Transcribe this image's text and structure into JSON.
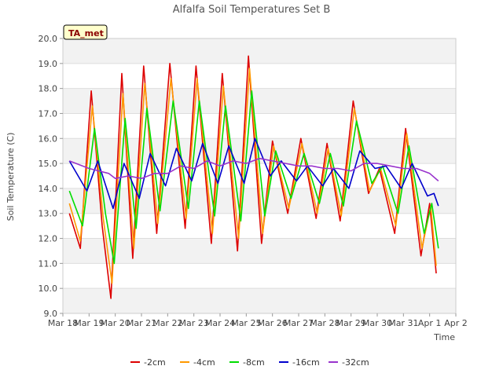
{
  "chart_data": {
    "type": "line",
    "title": "Alfalfa Soil Temperatures Set B",
    "xlabel": "Time",
    "ylabel": "Soil Temperature (C)",
    "ylim": [
      9.0,
      20.0
    ],
    "y_ticks": [
      "9.0",
      "10.0",
      "11.0",
      "12.0",
      "13.0",
      "14.0",
      "15.0",
      "16.0",
      "17.0",
      "18.0",
      "19.0",
      "20.0"
    ],
    "x_ticks": [
      "Mar 18",
      "Mar 19",
      "Mar 20",
      "Mar 21",
      "Mar 22",
      "Mar 23",
      "Mar 24",
      "Mar 25",
      "Mar 26",
      "Mar 27",
      "Mar 28",
      "Mar 29",
      "Mar 30",
      "Mar 31",
      "Apr 1",
      "Apr 2"
    ],
    "x_start": "2023-03-18",
    "x_end": "2023-04-02",
    "grid": "horizontal bands",
    "legend_position": "bottom",
    "badge": "TA_met",
    "series": [
      {
        "name": "-2cm",
        "color": "#dd0000",
        "values": [
          [
            "2023-03-18T06:00",
            13.0
          ],
          [
            "2023-03-18T16:00",
            11.6
          ],
          [
            "2023-03-19T02:00",
            17.9
          ],
          [
            "2023-03-19T12:00",
            12.5
          ],
          [
            "2023-03-19T20:00",
            9.6
          ],
          [
            "2023-03-20T06:00",
            18.6
          ],
          [
            "2023-03-20T16:00",
            11.2
          ],
          [
            "2023-03-21T02:00",
            18.9
          ],
          [
            "2023-03-21T14:00",
            12.2
          ],
          [
            "2023-03-22T02:00",
            19.0
          ],
          [
            "2023-03-22T16:00",
            12.4
          ],
          [
            "2023-03-23T02:00",
            18.9
          ],
          [
            "2023-03-23T16:00",
            11.8
          ],
          [
            "2023-03-24T02:00",
            18.6
          ],
          [
            "2023-03-24T16:00",
            11.5
          ],
          [
            "2023-03-25T02:00",
            19.3
          ],
          [
            "2023-03-25T14:00",
            11.8
          ],
          [
            "2023-03-26T00:00",
            15.9
          ],
          [
            "2023-03-26T14:00",
            13.0
          ],
          [
            "2023-03-27T02:00",
            16.0
          ],
          [
            "2023-03-27T16:00",
            12.8
          ],
          [
            "2023-03-28T02:00",
            15.8
          ],
          [
            "2023-03-28T14:00",
            12.7
          ],
          [
            "2023-03-29T02:00",
            17.5
          ],
          [
            "2023-03-29T16:00",
            13.8
          ],
          [
            "2023-03-30T02:00",
            14.8
          ],
          [
            "2023-03-30T16:00",
            12.2
          ],
          [
            "2023-03-31T02:00",
            16.4
          ],
          [
            "2023-03-31T16:00",
            11.3
          ],
          [
            "2023-04-01T00:00",
            13.4
          ],
          [
            "2023-04-01T06:00",
            10.6
          ]
        ]
      },
      {
        "name": "-4cm",
        "color": "#ff9900",
        "values": [
          [
            "2023-03-18T06:00",
            13.4
          ],
          [
            "2023-03-18T16:00",
            11.9
          ],
          [
            "2023-03-19T03:00",
            17.3
          ],
          [
            "2023-03-19T13:00",
            12.8
          ],
          [
            "2023-03-19T21:00",
            10.2
          ],
          [
            "2023-03-20T07:00",
            17.8
          ],
          [
            "2023-03-20T17:00",
            11.6
          ],
          [
            "2023-03-21T03:00",
            18.2
          ],
          [
            "2023-03-21T15:00",
            12.6
          ],
          [
            "2023-03-22T03:00",
            18.4
          ],
          [
            "2023-03-22T17:00",
            12.8
          ],
          [
            "2023-03-23T03:00",
            18.4
          ],
          [
            "2023-03-23T17:00",
            12.2
          ],
          [
            "2023-03-24T03:00",
            18.1
          ],
          [
            "2023-03-24T17:00",
            12.0
          ],
          [
            "2023-03-25T03:00",
            18.8
          ],
          [
            "2023-03-25T15:00",
            12.2
          ],
          [
            "2023-03-26T01:00",
            15.7
          ],
          [
            "2023-03-26T15:00",
            13.2
          ],
          [
            "2023-03-27T03:00",
            15.8
          ],
          [
            "2023-03-27T17:00",
            13.0
          ],
          [
            "2023-03-28T03:00",
            15.6
          ],
          [
            "2023-03-28T15:00",
            12.9
          ],
          [
            "2023-03-29T03:00",
            17.2
          ],
          [
            "2023-03-29T17:00",
            13.9
          ],
          [
            "2023-03-30T03:00",
            14.8
          ],
          [
            "2023-03-30T17:00",
            12.5
          ],
          [
            "2023-03-31T03:00",
            16.2
          ],
          [
            "2023-03-31T17:00",
            11.6
          ],
          [
            "2023-04-01T01:00",
            13.3
          ],
          [
            "2023-04-01T06:00",
            10.9
          ]
        ]
      },
      {
        "name": "-8cm",
        "color": "#00dd00",
        "values": [
          [
            "2023-03-18T06:00",
            13.9
          ],
          [
            "2023-03-18T18:00",
            12.5
          ],
          [
            "2023-03-19T05:00",
            16.4
          ],
          [
            "2023-03-19T15:00",
            13.0
          ],
          [
            "2023-03-19T23:00",
            11.0
          ],
          [
            "2023-03-20T09:00",
            16.8
          ],
          [
            "2023-03-20T19:00",
            12.4
          ],
          [
            "2023-03-21T05:00",
            17.2
          ],
          [
            "2023-03-21T17:00",
            13.1
          ],
          [
            "2023-03-22T05:00",
            17.5
          ],
          [
            "2023-03-22T19:00",
            13.2
          ],
          [
            "2023-03-23T05:00",
            17.5
          ],
          [
            "2023-03-23T19:00",
            12.9
          ],
          [
            "2023-03-24T05:00",
            17.3
          ],
          [
            "2023-03-24T19:00",
            12.7
          ],
          [
            "2023-03-25T05:00",
            17.9
          ],
          [
            "2023-03-25T17:00",
            12.9
          ],
          [
            "2023-03-26T03:00",
            15.5
          ],
          [
            "2023-03-26T17:00",
            13.6
          ],
          [
            "2023-03-27T05:00",
            15.4
          ],
          [
            "2023-03-27T19:00",
            13.4
          ],
          [
            "2023-03-28T05:00",
            15.4
          ],
          [
            "2023-03-28T17:00",
            13.3
          ],
          [
            "2023-03-29T05:00",
            16.7
          ],
          [
            "2023-03-29T19:00",
            14.2
          ],
          [
            "2023-03-30T05:00",
            14.9
          ],
          [
            "2023-03-30T19:00",
            13.0
          ],
          [
            "2023-03-31T05:00",
            15.7
          ],
          [
            "2023-03-31T19:00",
            12.2
          ],
          [
            "2023-04-01T02:00",
            13.4
          ],
          [
            "2023-04-01T08:00",
            11.6
          ]
        ]
      },
      {
        "name": "-16cm",
        "color": "#0000cc",
        "values": [
          [
            "2023-03-18T06:00",
            15.1
          ],
          [
            "2023-03-18T22:00",
            13.9
          ],
          [
            "2023-03-19T08:00",
            15.1
          ],
          [
            "2023-03-19T22:00",
            13.2
          ],
          [
            "2023-03-20T08:00",
            15.0
          ],
          [
            "2023-03-20T22:00",
            13.6
          ],
          [
            "2023-03-21T08:00",
            15.4
          ],
          [
            "2023-03-21T22:00",
            14.1
          ],
          [
            "2023-03-22T08:00",
            15.6
          ],
          [
            "2023-03-22T22:00",
            14.3
          ],
          [
            "2023-03-23T08:00",
            15.8
          ],
          [
            "2023-03-23T22:00",
            14.2
          ],
          [
            "2023-03-24T08:00",
            15.7
          ],
          [
            "2023-03-24T22:00",
            14.2
          ],
          [
            "2023-03-25T08:00",
            16.0
          ],
          [
            "2023-03-25T22:00",
            14.5
          ],
          [
            "2023-03-26T08:00",
            15.1
          ],
          [
            "2023-03-26T22:00",
            14.3
          ],
          [
            "2023-03-27T08:00",
            14.9
          ],
          [
            "2023-03-27T22:00",
            14.1
          ],
          [
            "2023-03-28T08:00",
            14.8
          ],
          [
            "2023-03-28T22:00",
            14.0
          ],
          [
            "2023-03-29T08:00",
            15.5
          ],
          [
            "2023-03-29T22:00",
            14.8
          ],
          [
            "2023-03-30T08:00",
            14.9
          ],
          [
            "2023-03-30T22:00",
            14.0
          ],
          [
            "2023-03-31T08:00",
            15.0
          ],
          [
            "2023-03-31T22:00",
            13.7
          ],
          [
            "2023-04-01T04:00",
            13.8
          ],
          [
            "2023-04-01T08:00",
            13.3
          ]
        ]
      },
      {
        "name": "-32cm",
        "color": "#9933cc",
        "values": [
          [
            "2023-03-18T06:00",
            15.1
          ],
          [
            "2023-03-19T00:00",
            14.8
          ],
          [
            "2023-03-19T18:00",
            14.6
          ],
          [
            "2023-03-20T00:00",
            14.4
          ],
          [
            "2023-03-20T12:00",
            14.5
          ],
          [
            "2023-03-21T00:00",
            14.4
          ],
          [
            "2023-03-21T12:00",
            14.6
          ],
          [
            "2023-03-22T00:00",
            14.6
          ],
          [
            "2023-03-22T12:00",
            14.9
          ],
          [
            "2023-03-23T00:00",
            14.8
          ],
          [
            "2023-03-23T12:00",
            15.1
          ],
          [
            "2023-03-24T00:00",
            14.9
          ],
          [
            "2023-03-24T12:00",
            15.1
          ],
          [
            "2023-03-25T00:00",
            15.0
          ],
          [
            "2023-03-25T12:00",
            15.2
          ],
          [
            "2023-03-26T00:00",
            15.1
          ],
          [
            "2023-03-26T12:00",
            15.0
          ],
          [
            "2023-03-27T00:00",
            14.9
          ],
          [
            "2023-03-27T12:00",
            14.9
          ],
          [
            "2023-03-28T00:00",
            14.8
          ],
          [
            "2023-03-28T12:00",
            14.8
          ],
          [
            "2023-03-29T00:00",
            14.7
          ],
          [
            "2023-03-29T12:00",
            15.0
          ],
          [
            "2023-03-30T00:00",
            15.0
          ],
          [
            "2023-03-30T12:00",
            14.9
          ],
          [
            "2023-03-31T00:00",
            14.8
          ],
          [
            "2023-03-31T12:00",
            14.8
          ],
          [
            "2023-04-01T00:00",
            14.6
          ],
          [
            "2023-04-01T08:00",
            14.3
          ]
        ]
      }
    ]
  }
}
